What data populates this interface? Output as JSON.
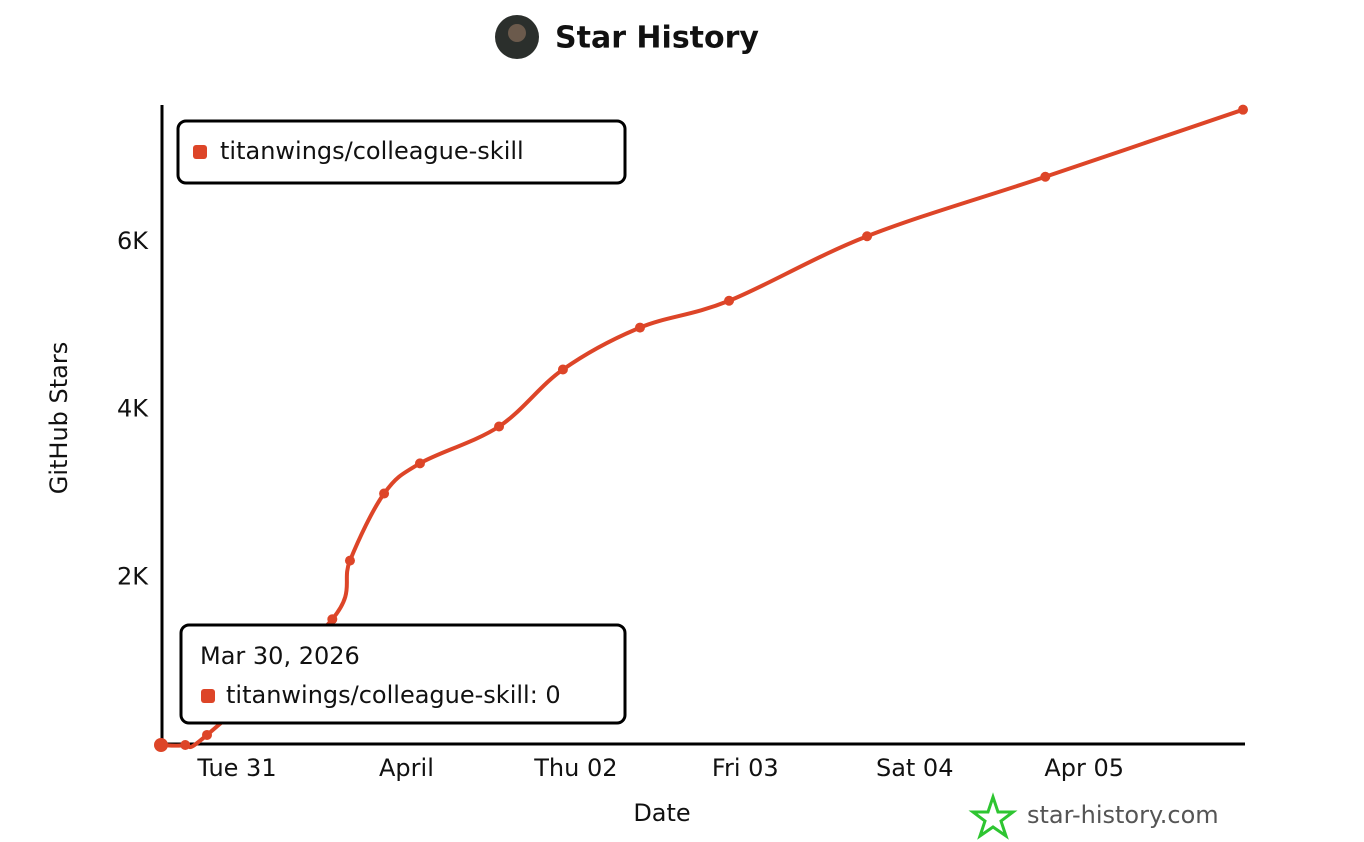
{
  "chart_data": {
    "type": "line",
    "title": "Star History",
    "x_label": "Date",
    "y_label": "GitHub Stars",
    "x": [
      "2026-03-30T13:14",
      "2026-03-30T16:40",
      "2026-03-30T19:45",
      "2026-03-31T13:30",
      "2026-03-31T16:00",
      "2026-03-31T20:50",
      "2026-04-01T01:55",
      "2026-04-01T13:07",
      "2026-04-01T22:10",
      "2026-04-02T09:05",
      "2026-04-02T21:42",
      "2026-04-03T17:15",
      "2026-04-04T18:30",
      "2026-04-05T22:30"
    ],
    "series": [
      {
        "name": "titanwings/colleague-skill",
        "color": "#dd4528",
        "values": [
          0,
          0,
          120,
          1500,
          2200,
          3000,
          3360,
          3800,
          4480,
          4980,
          5300,
          6070,
          6780,
          7580
        ]
      }
    ],
    "xlim": [
      "2026-03-30T13:14",
      "2026-04-05T22:30"
    ],
    "xticks": [
      {
        "value": "2026-03-31T00:00",
        "label": "Tue 31"
      },
      {
        "value": "2026-04-01T00:00",
        "label": "April"
      },
      {
        "value": "2026-04-02T00:00",
        "label": "Thu 02"
      },
      {
        "value": "2026-04-03T00:00",
        "label": "Fri 03"
      },
      {
        "value": "2026-04-04T00:00",
        "label": "Sat 04"
      },
      {
        "value": "2026-04-05T00:00",
        "label": "Apr 05"
      }
    ],
    "ylim": [
      0,
      7600
    ],
    "yticks": [
      {
        "value": 2000,
        "label": "2K"
      },
      {
        "value": 4000,
        "label": "4K"
      },
      {
        "value": 6000,
        "label": "6K"
      }
    ],
    "legend": "top-left",
    "tooltip": {
      "title": "Mar 30, 2026",
      "text": "titanwings/colleague-skill: 0"
    },
    "watermark": "star-history.com"
  }
}
